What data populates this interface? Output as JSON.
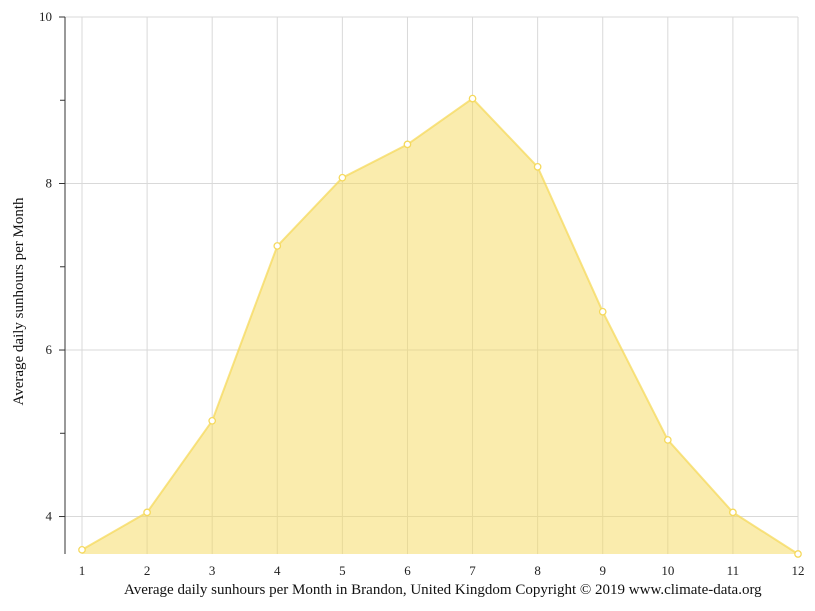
{
  "chart_data": {
    "type": "area",
    "title": "",
    "xlabel": "",
    "ylabel": "Average daily sunhours per Month",
    "x": [
      "1",
      "2",
      "3",
      "4",
      "5",
      "6",
      "7",
      "8",
      "9",
      "10",
      "11",
      "12"
    ],
    "series": [
      {
        "values": [
          3.6,
          4.05,
          5.15,
          7.25,
          8.07,
          8.47,
          9.02,
          8.2,
          6.46,
          4.92,
          4.05,
          3.55
        ],
        "color": "#f5d95c"
      }
    ],
    "ylim": [
      3.55,
      10
    ],
    "y_ticks": [
      4,
      6,
      8,
      10
    ],
    "y_minor_ticks": [
      5,
      7,
      9
    ],
    "grid": true,
    "caption": "Average daily sunhours per Month in Brandon, United Kingdom Copyright © 2019 www.climate-data.org"
  }
}
